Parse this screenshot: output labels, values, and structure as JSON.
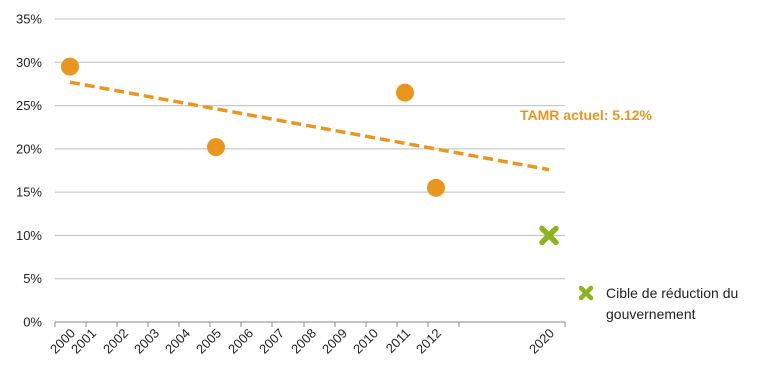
{
  "chart_data": {
    "type": "scatter",
    "title": "",
    "xlabel": "",
    "ylabel": "",
    "x_categories": [
      "2000",
      "2001",
      "2002",
      "2003",
      "2004",
      "2005",
      "2006",
      "2007",
      "2008",
      "2009",
      "2010",
      "2011",
      "2012",
      "2020"
    ],
    "y_ticks": [
      "0%",
      "5%",
      "10%",
      "15%",
      "20%",
      "25%",
      "30%",
      "35%"
    ],
    "ylim": [
      0,
      35
    ],
    "grid": true,
    "series": [
      {
        "name": "",
        "marker": "circle",
        "color": "#E8961E",
        "points": [
          {
            "x": "2000",
            "y": 29.5
          },
          {
            "x": "2005",
            "y": 20.2
          },
          {
            "x": "2011",
            "y": 26.5
          },
          {
            "x": "2012",
            "y": 15.5
          }
        ]
      },
      {
        "name": "Cible de réduction du gouvernement",
        "marker": "x",
        "color": "#8DB31E",
        "points": [
          {
            "x": "2020",
            "y": 10
          }
        ]
      }
    ],
    "trendline": {
      "style": "dashed",
      "color": "#E8961E",
      "start": {
        "x": "2000",
        "y": 27.7
      },
      "end": {
        "x": "2020",
        "y": 17.6
      }
    },
    "annotation": {
      "text": "TAMR actuel: 5.12%",
      "color": "#E8961E"
    },
    "legend": {
      "placement": "bottom-right",
      "lines": [
        "Cible de réduction du",
        "gouvernement"
      ]
    }
  }
}
